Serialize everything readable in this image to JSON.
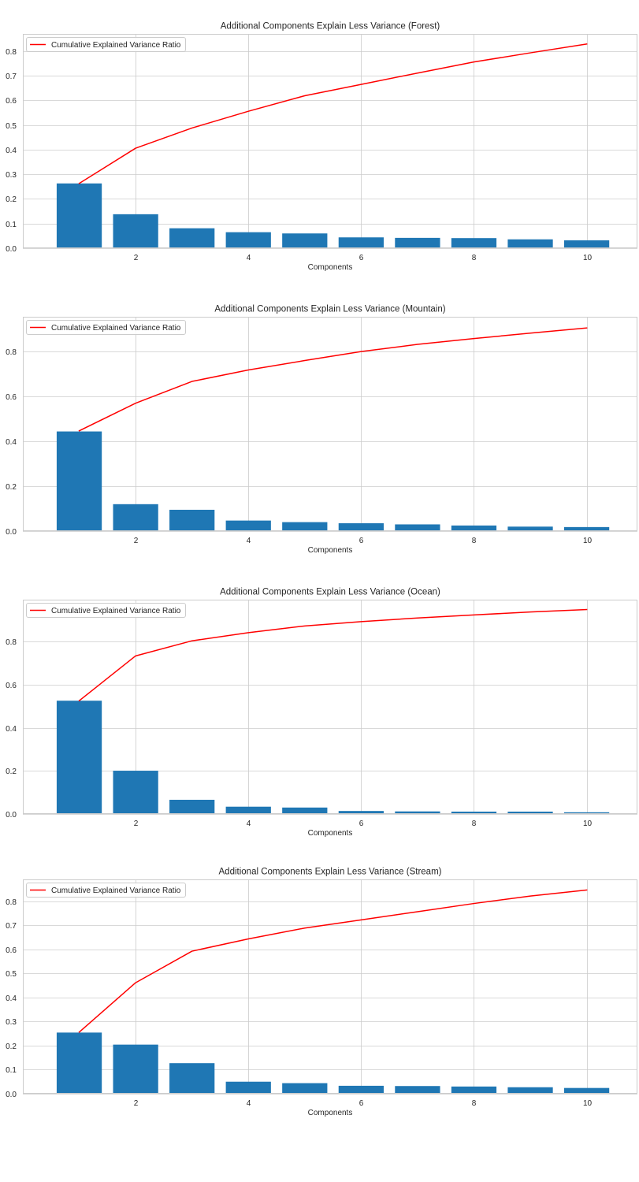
{
  "chart_data": [
    {
      "type": "bar",
      "title": "Additional Components Explain Less Variance (Forest)",
      "xlabel": "Components",
      "ylabel": "",
      "x": [
        1,
        2,
        3,
        4,
        5,
        6,
        7,
        8,
        9,
        10
      ],
      "values": [
        0.263,
        0.138,
        0.081,
        0.065,
        0.06,
        0.044,
        0.042,
        0.041,
        0.036,
        0.032
      ],
      "ylim": [
        0,
        0.87
      ],
      "xlim": [
        0.0,
        10.9
      ],
      "xticks": [
        2,
        4,
        6,
        8,
        10
      ],
      "yticks": [
        0.0,
        0.1,
        0.2,
        0.3,
        0.4,
        0.5,
        0.6,
        0.7,
        0.8
      ],
      "ytick_decimals": 1,
      "grid": true,
      "legend_position": "top-left",
      "series": [
        {
          "name": "Cumulative Explained Variance Ratio",
          "type": "line",
          "x": [
            1,
            2,
            3,
            4,
            5,
            6,
            7,
            8,
            9,
            10
          ],
          "values": [
            0.263,
            0.406,
            0.488,
            0.556,
            0.619,
            0.665,
            0.711,
            0.756,
            0.793,
            0.829
          ]
        }
      ]
    },
    {
      "type": "bar",
      "title": "Additional Components Explain Less Variance (Mountain)",
      "xlabel": "Components",
      "ylabel": "",
      "x": [
        1,
        2,
        3,
        4,
        5,
        6,
        7,
        8,
        9,
        10
      ],
      "values": [
        0.444,
        0.12,
        0.095,
        0.047,
        0.04,
        0.035,
        0.03,
        0.025,
        0.02,
        0.018
      ],
      "ylim": [
        0,
        0.955
      ],
      "xlim": [
        0.0,
        10.9
      ],
      "xticks": [
        2,
        4,
        6,
        8,
        10
      ],
      "yticks": [
        0.0,
        0.2,
        0.4,
        0.6,
        0.8
      ],
      "ytick_decimals": 1,
      "grid": true,
      "legend_position": "top-left",
      "series": [
        {
          "name": "Cumulative Explained Variance Ratio",
          "type": "line",
          "x": [
            1,
            2,
            3,
            4,
            5,
            6,
            7,
            8,
            9,
            10
          ],
          "values": [
            0.447,
            0.57,
            0.667,
            0.718,
            0.76,
            0.8,
            0.832,
            0.858,
            0.882,
            0.905
          ]
        }
      ]
    },
    {
      "type": "bar",
      "title": "Additional Components Explain Less Variance (Ocean)",
      "xlabel": "Components",
      "ylabel": "",
      "x": [
        1,
        2,
        3,
        4,
        5,
        6,
        7,
        8,
        9,
        10
      ],
      "values": [
        0.526,
        0.201,
        0.066,
        0.034,
        0.03,
        0.014,
        0.012,
        0.011,
        0.011,
        0.008
      ],
      "ylim": [
        0,
        0.995
      ],
      "xlim": [
        0.0,
        10.9
      ],
      "xticks": [
        2,
        4,
        6,
        8,
        10
      ],
      "yticks": [
        0.0,
        0.2,
        0.4,
        0.6,
        0.8
      ],
      "ytick_decimals": 1,
      "grid": true,
      "legend_position": "top-left",
      "series": [
        {
          "name": "Cumulative Explained Variance Ratio",
          "type": "line",
          "x": [
            1,
            2,
            3,
            4,
            5,
            6,
            7,
            8,
            9,
            10
          ],
          "values": [
            0.526,
            0.734,
            0.804,
            0.842,
            0.873,
            0.893,
            0.91,
            0.924,
            0.938,
            0.949
          ]
        }
      ]
    },
    {
      "type": "bar",
      "title": "Additional Components Explain Less Variance (Stream)",
      "xlabel": "Components",
      "ylabel": "",
      "x": [
        1,
        2,
        3,
        4,
        5,
        6,
        7,
        8,
        9,
        10
      ],
      "values": [
        0.254,
        0.204,
        0.127,
        0.05,
        0.044,
        0.033,
        0.032,
        0.03,
        0.027,
        0.024
      ],
      "ylim": [
        0,
        0.89
      ],
      "xlim": [
        0.0,
        10.9
      ],
      "xticks": [
        2,
        4,
        6,
        8,
        10
      ],
      "yticks": [
        0.0,
        0.1,
        0.2,
        0.3,
        0.4,
        0.5,
        0.6,
        0.7,
        0.8
      ],
      "ytick_decimals": 1,
      "grid": true,
      "legend_position": "top-left",
      "series": [
        {
          "name": "Cumulative Explained Variance Ratio",
          "type": "line",
          "x": [
            1,
            2,
            3,
            4,
            5,
            6,
            7,
            8,
            9,
            10
          ],
          "values": [
            0.256,
            0.461,
            0.592,
            0.643,
            0.688,
            0.722,
            0.756,
            0.79,
            0.821,
            0.846
          ]
        }
      ]
    }
  ],
  "colors": {
    "bar": "#1f77b4",
    "line": "#ff0000",
    "grid": "#cccccc",
    "axes_edge": "#cccccc",
    "text": "#262626",
    "legend_edge": "#cccccc"
  }
}
